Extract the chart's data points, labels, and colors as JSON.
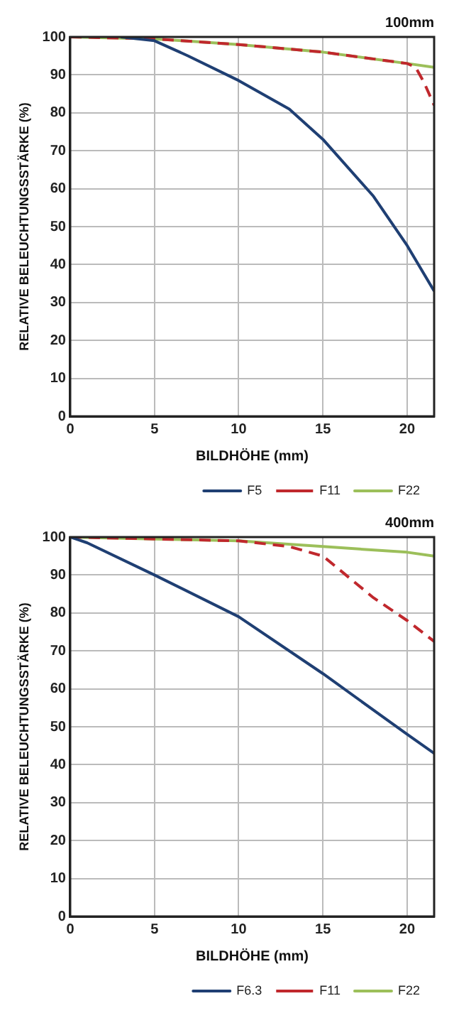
{
  "chart_data": [
    {
      "type": "line",
      "title": "100mm",
      "xlabel": "BILDHÖHE (mm)",
      "ylabel": "RELATIVE BELEUCHTUNGSSTÄRKE (%)",
      "xlim": [
        0,
        21.6
      ],
      "xticks": [
        0,
        5,
        10,
        15,
        20
      ],
      "ylim": [
        0,
        100
      ],
      "yticks": [
        0,
        10,
        20,
        30,
        40,
        50,
        60,
        70,
        80,
        90,
        100
      ],
      "grid": true,
      "legend": "bottom right",
      "marker": "none",
      "series": [
        {
          "name": "F5",
          "color": "#1f3f73",
          "line_style": "solid",
          "x": [
            3,
            5,
            7,
            10,
            13,
            15,
            18,
            20,
            21.6
          ],
          "values": [
            100,
            99,
            95,
            88.5,
            81,
            73,
            58,
            45,
            33
          ]
        },
        {
          "name": "F11",
          "color": "#c0282d",
          "line_style": "dashed",
          "x": [
            0,
            5,
            10,
            15,
            20,
            20.5,
            21,
            21.6
          ],
          "values": [
            100,
            99.5,
            98,
            96,
            93,
            92,
            88,
            82
          ]
        },
        {
          "name": "F22",
          "color": "#9cbf5a",
          "line_style": "solid",
          "x": [
            0,
            5,
            10,
            15,
            20,
            21.6
          ],
          "values": [
            100,
            99.5,
            98,
            96,
            93,
            92
          ]
        }
      ]
    },
    {
      "type": "line",
      "title": "400mm",
      "xlabel": "BILDHÖHE (mm)",
      "ylabel": "RELATIVE BELEUCHTUNGSSTÄRKE (%)",
      "xlim": [
        0,
        21.6
      ],
      "xticks": [
        0,
        5,
        10,
        15,
        20
      ],
      "ylim": [
        0,
        100
      ],
      "yticks": [
        0,
        10,
        20,
        30,
        40,
        50,
        60,
        70,
        80,
        90,
        100
      ],
      "grid": true,
      "legend": "bottom right",
      "marker": "none",
      "series": [
        {
          "name": "F6.3",
          "color": "#1f3f73",
          "line_style": "solid",
          "x": [
            0,
            1,
            5,
            10,
            15,
            20,
            21.6
          ],
          "values": [
            100,
            98.5,
            90,
            79,
            64,
            48,
            43
          ]
        },
        {
          "name": "F11",
          "color": "#c0282d",
          "line_style": "dashed",
          "x": [
            0,
            5,
            10,
            13,
            15,
            18,
            20,
            21.6
          ],
          "values": [
            100,
            99.5,
            99,
            97.5,
            95,
            84,
            78,
            72.5
          ]
        },
        {
          "name": "F22",
          "color": "#9cbf5a",
          "line_style": "solid",
          "x": [
            0,
            5,
            10,
            15,
            20,
            21.6
          ],
          "values": [
            100,
            99.5,
            99,
            97.5,
            96,
            95
          ]
        }
      ]
    }
  ]
}
